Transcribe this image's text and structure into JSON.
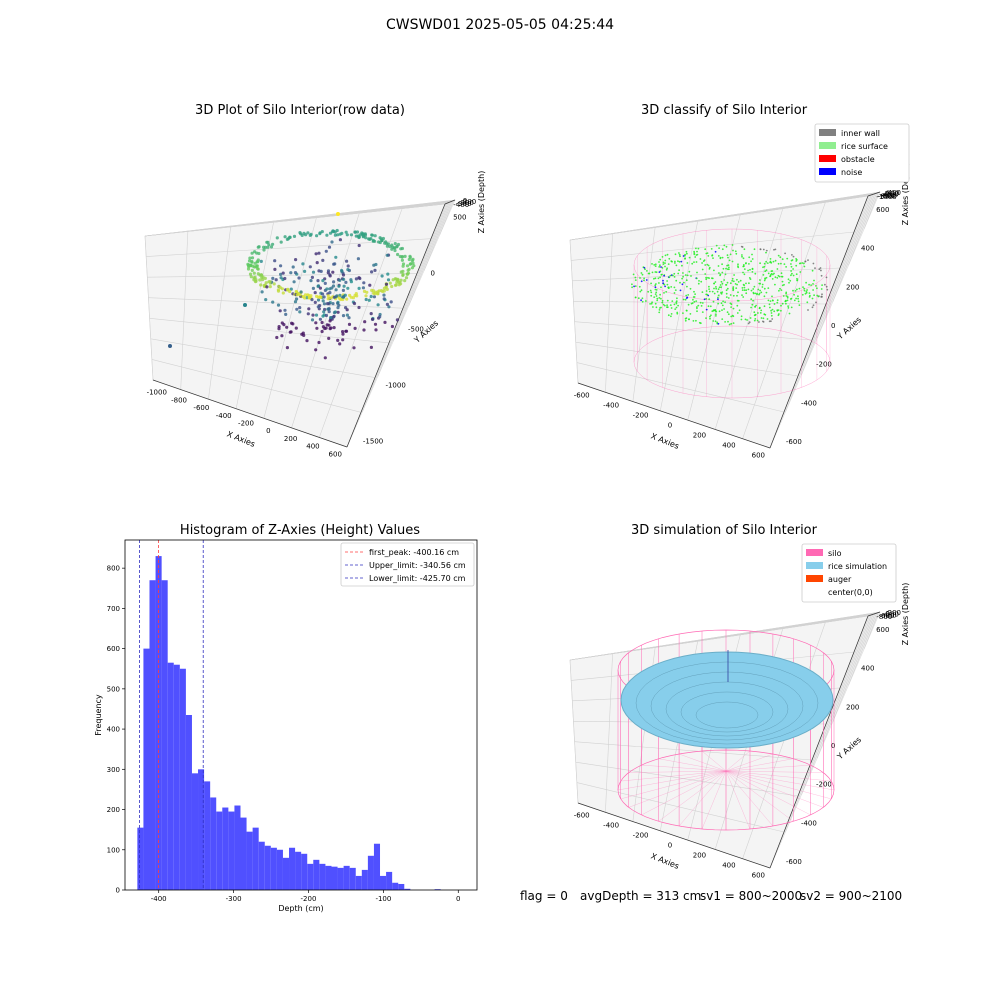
{
  "suptitle": "CWSWD01 2025-05-05 04:25:44",
  "footer": {
    "flag": "flag = 0",
    "avg": "avgDepth = 313 cm",
    "sv1": "sv1 = 800~2000",
    "sv2": "sv2 = 900~2100"
  },
  "chart_data": [
    {
      "type": "scatter",
      "title": "3D Plot of Silo Interior(row data)",
      "xlabel": "X Axies",
      "ylabel": "Y Axies",
      "zlabel": "Z Axies (Depth)",
      "x_ticks": [
        "-1000",
        "-800",
        "-600",
        "-400",
        "-200",
        "0",
        "200",
        "400",
        "600"
      ],
      "y_ticks": [
        "500",
        "0",
        "-500",
        "-1000",
        "-1500"
      ],
      "z_ticks": [
        "0",
        "-100",
        "-200",
        "-300",
        "-400"
      ],
      "colormap": "viridis",
      "grid": true
    },
    {
      "type": "scatter",
      "title": "3D classify of Silo Interior",
      "xlabel": "X Axies",
      "ylabel": "Y Axies",
      "zlabel": "Z Axies (Depth)",
      "x_ticks": [
        "-600",
        "-400",
        "-200",
        "0",
        "200",
        "400",
        "600"
      ],
      "y_ticks": [
        "600",
        "400",
        "200",
        "0",
        "-200",
        "-400",
        "-600"
      ],
      "z_ticks": [
        "400",
        "200",
        "0",
        "-200",
        "-400",
        "-600",
        "-800",
        "-1000"
      ],
      "legend": [
        {
          "label": "inner wall",
          "color": "#808080"
        },
        {
          "label": "rice surface",
          "color": "#90ee90"
        },
        {
          "label": "obstacle",
          "color": "#ff0000"
        },
        {
          "label": "noise",
          "color": "#0000ff"
        }
      ],
      "legend_position": "top-right",
      "grid": true
    },
    {
      "type": "bar",
      "title": "Histogram of Z-Axies (Height) Values",
      "xlabel": "Depth (cm)",
      "ylabel": "Frequency",
      "xlim": [
        -445,
        25
      ],
      "ylim": [
        0,
        870
      ],
      "x_ticks": [
        -400,
        -300,
        -200,
        -100,
        0
      ],
      "y_ticks": [
        0,
        100,
        200,
        300,
        400,
        500,
        600,
        700,
        800
      ],
      "bin_start": -428.5,
      "bin_width": 8.1,
      "values": [
        155,
        600,
        770,
        830,
        770,
        565,
        560,
        550,
        435,
        290,
        300,
        270,
        230,
        195,
        205,
        195,
        210,
        180,
        145,
        155,
        120,
        110,
        105,
        100,
        80,
        105,
        95,
        90,
        65,
        75,
        65,
        60,
        58,
        55,
        60,
        55,
        35,
        50,
        85,
        115,
        35,
        45,
        18,
        15,
        3,
        0,
        0,
        0,
        0,
        2
      ],
      "bar_color": "#5050ff",
      "vlines": [
        {
          "label": "first_peak: -400.16 cm",
          "x": -400.16,
          "color": "#ff4040"
        },
        {
          "label": "Upper_limit: -340.56 cm",
          "x": -340.56,
          "color": "#3030c0"
        },
        {
          "label": "Lower_limit: -425.70 cm",
          "x": -425.7,
          "color": "#3030c0"
        }
      ],
      "legend_position": "top-right"
    },
    {
      "type": "scatter",
      "title": "3D simulation of Silo Interior",
      "xlabel": "X Axies",
      "ylabel": "Y Axies",
      "zlabel": "Z Axies (Depth)",
      "x_ticks": [
        "-600",
        "-400",
        "-200",
        "0",
        "200",
        "400",
        "600"
      ],
      "y_ticks": [
        "600",
        "400",
        "200",
        "0",
        "-200",
        "-400",
        "-600"
      ],
      "z_ticks": [
        "200",
        "0",
        "-200",
        "-400",
        "-600",
        "-800"
      ],
      "legend": [
        {
          "label": "silo",
          "color": "#ff69b4"
        },
        {
          "label": "rice simulation",
          "color": "#87ceeb"
        },
        {
          "label": "auger",
          "color": "#ff4500"
        },
        {
          "label": "center(0,0)",
          "color": ""
        }
      ],
      "legend_position": "top-right",
      "grid": true
    }
  ]
}
